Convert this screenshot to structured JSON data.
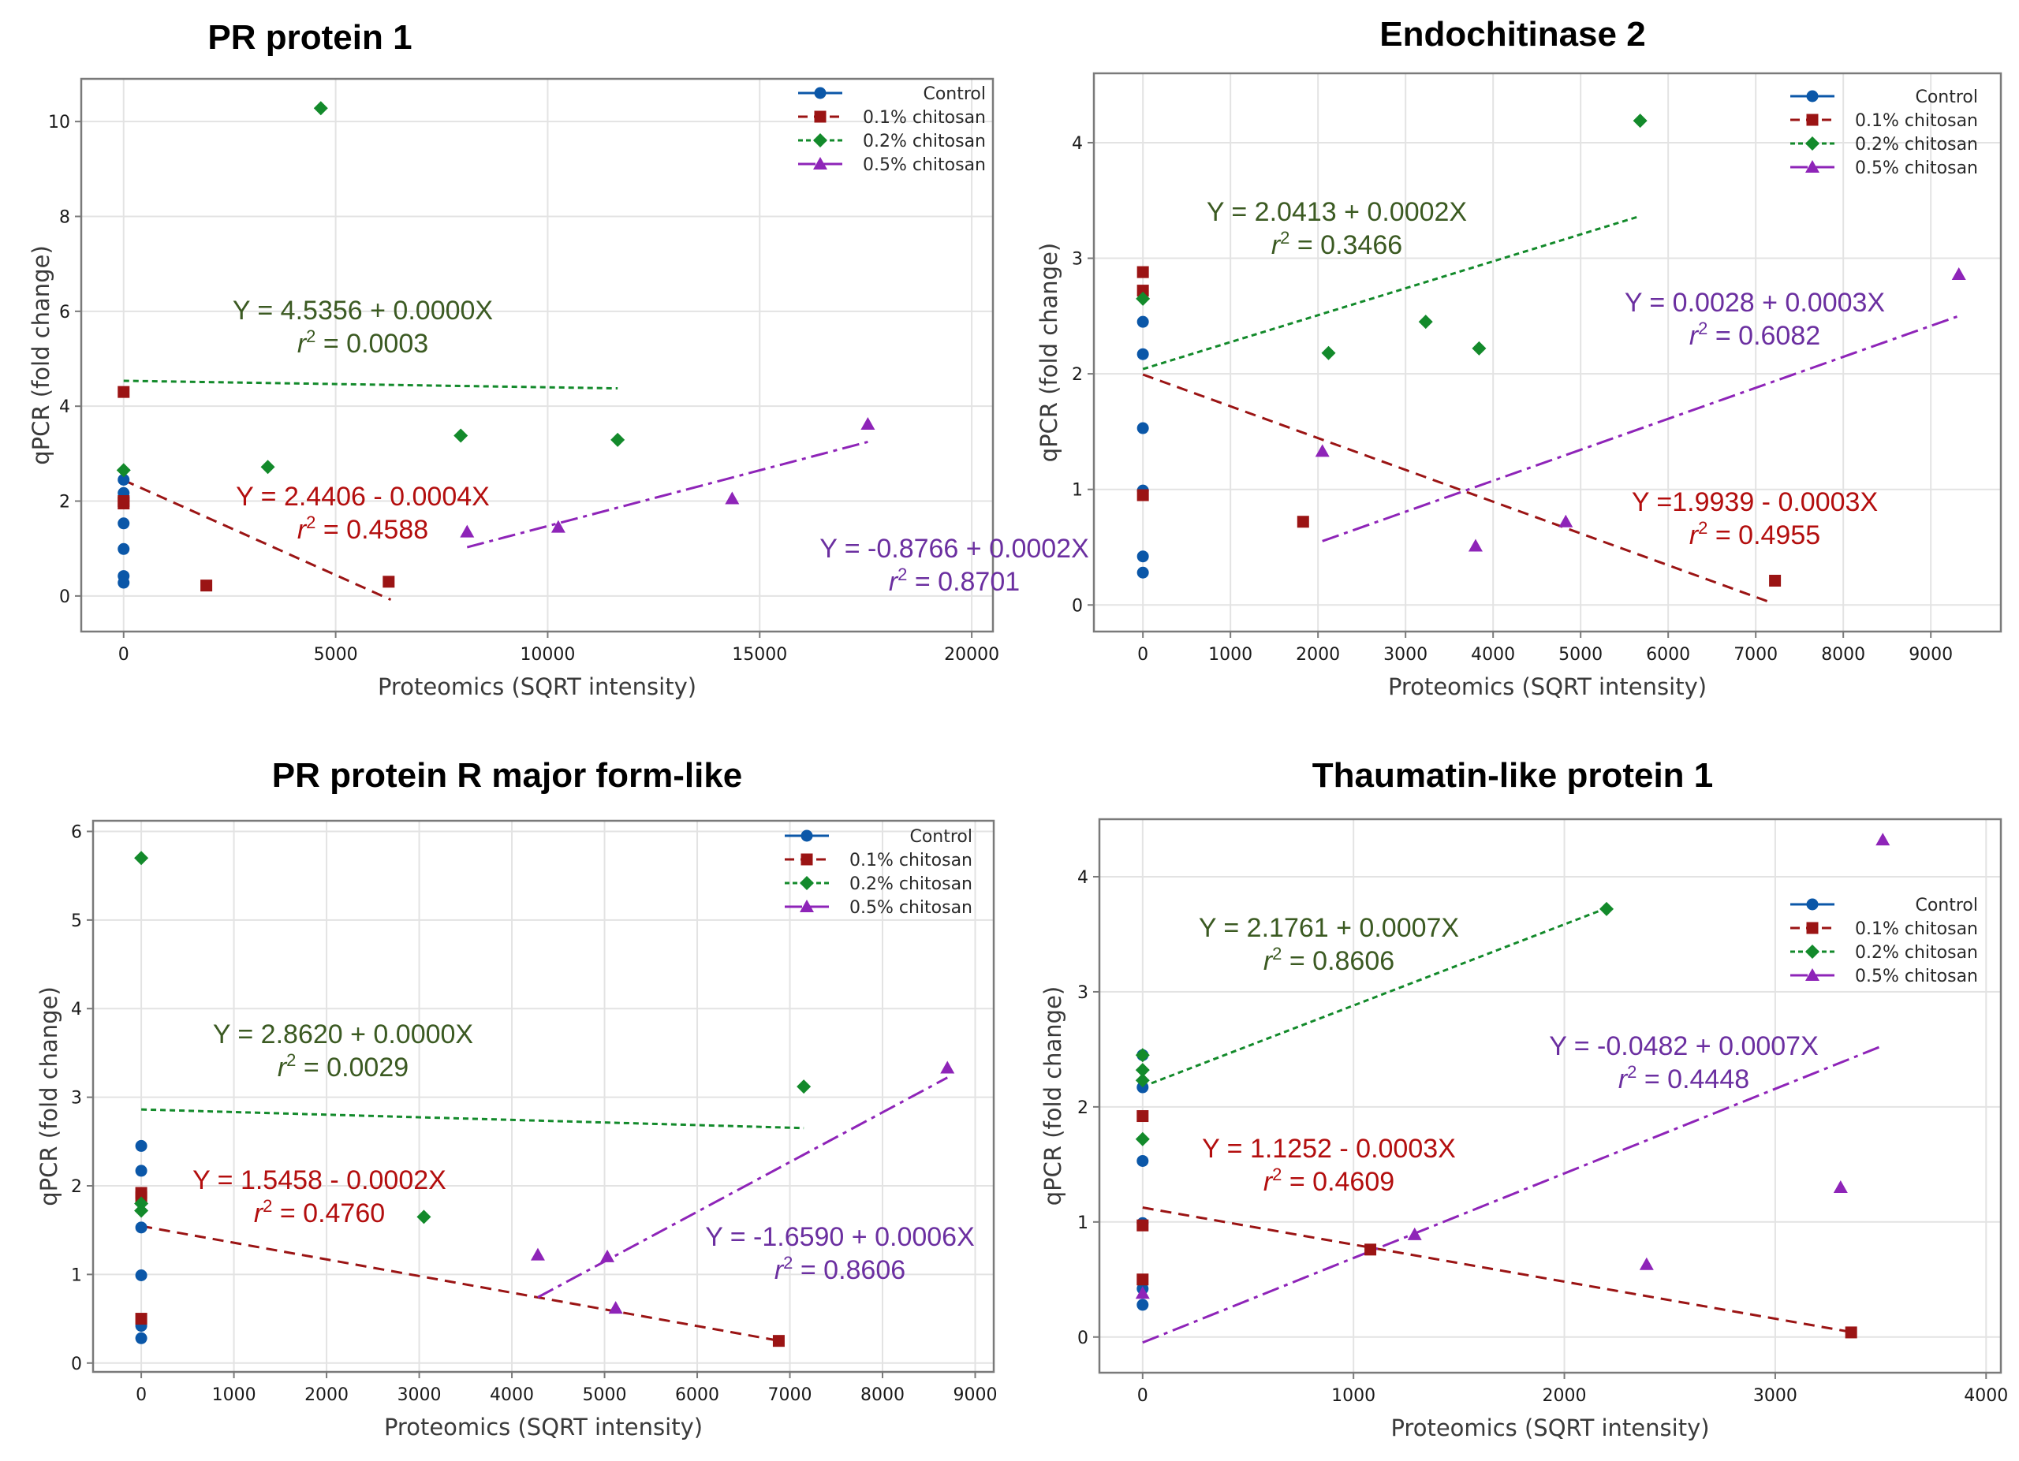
{
  "colors": {
    "control": "#0b57a8",
    "chitosan_01": "#9b1414",
    "chitosan_02": "#138a2b",
    "chitosan_05": "#8e24b8",
    "eq_01": "#b30e0e",
    "eq_02": "#3b5a22",
    "eq_05": "#6b2fa0"
  },
  "legend": {
    "items": [
      {
        "key": "control",
        "label": "Control",
        "marker": "circle"
      },
      {
        "key": "chitosan_01",
        "label": "0.1% chitosan",
        "marker": "square"
      },
      {
        "key": "chitosan_02",
        "label": "0.2% chitosan",
        "marker": "diamond"
      },
      {
        "key": "chitosan_05",
        "label": "0.5% chitosan",
        "marker": "triangle"
      }
    ]
  },
  "chart_data": [
    {
      "type": "scatter",
      "title": "PR protein 1",
      "xlabel": "Proteomics (SQRT intensity)",
      "ylabel": "qPCR (fold change)",
      "xlim": [
        -1000,
        20500
      ],
      "ylim": [
        -0.75,
        10.9
      ],
      "xticks": [
        0,
        5000,
        10000,
        15000,
        20000
      ],
      "yticks": [
        0,
        2,
        4,
        6,
        8,
        10
      ],
      "grid": true,
      "legend_position": "top-right",
      "series": [
        {
          "name": "Control",
          "key": "control",
          "points": [
            [
              0,
              2.45
            ],
            [
              0,
              2.17
            ],
            [
              0,
              2.08
            ],
            [
              0,
              1.53
            ],
            [
              0,
              0.99
            ],
            [
              0,
              0.42
            ],
            [
              0,
              0.28
            ]
          ]
        },
        {
          "name": "0.1% chitosan",
          "key": "chitosan_01",
          "points": [
            [
              0,
              4.3
            ],
            [
              0,
              2.0
            ],
            [
              0,
              1.95
            ],
            [
              1950,
              0.22
            ],
            [
              6250,
              0.3
            ]
          ],
          "fit": {
            "intercept": 2.4406,
            "slope": -0.0004,
            "r2": 0.4588,
            "x_range": [
              0,
              6300
            ]
          },
          "equation": "Y = 2.4406 - 0.0004X",
          "r2_text": "= 0.4588"
        },
        {
          "name": "0.2% chitosan",
          "key": "chitosan_02",
          "points": [
            [
              0,
              2.65
            ],
            [
              3400,
              2.72
            ],
            [
              4650,
              10.28
            ],
            [
              7950,
              3.38
            ],
            [
              11650,
              3.29
            ]
          ],
          "fit": {
            "intercept": 4.5356,
            "slope": -1.37e-05,
            "r2": 0.0003,
            "x_range": [
              0,
              11650
            ]
          },
          "equation": "Y = 4.5356 + 0.0000X",
          "r2_text": "= 0.0003"
        },
        {
          "name": "0.5% chitosan",
          "key": "chitosan_05",
          "points": [
            [
              8100,
              1.35
            ],
            [
              10250,
              1.45
            ],
            [
              14350,
              2.05
            ],
            [
              17550,
              3.62
            ]
          ],
          "fit": {
            "intercept": -0.8766,
            "slope": 0.000235,
            "r2": 0.8701,
            "x_range": [
              8100,
              17550
            ]
          },
          "equation": "Y = -0.8766 + 0.0002X",
          "r2_text": "= 0.8701"
        }
      ]
    },
    {
      "type": "scatter",
      "title": "Endochitinase 2",
      "xlabel": "Proteomics (SQRT intensity)",
      "ylabel": "qPCR (fold change)",
      "xlim": [
        -560,
        9800
      ],
      "ylim": [
        -0.23,
        4.6
      ],
      "xticks": [
        0,
        1000,
        2000,
        3000,
        4000,
        5000,
        6000,
        7000,
        8000,
        9000
      ],
      "yticks": [
        0,
        1,
        2,
        3,
        4
      ],
      "grid": true,
      "legend_position": "top-right",
      "series": [
        {
          "name": "Control",
          "key": "control",
          "points": [
            [
              0,
              2.45
            ],
            [
              0,
              2.17
            ],
            [
              0,
              1.53
            ],
            [
              0,
              0.99
            ],
            [
              0,
              0.42
            ],
            [
              0,
              0.28
            ]
          ]
        },
        {
          "name": "0.1% chitosan",
          "key": "chitosan_01",
          "points": [
            [
              0,
              2.88
            ],
            [
              0,
              2.72
            ],
            [
              0,
              0.95
            ],
            [
              1830,
              0.72
            ],
            [
              7220,
              0.21
            ]
          ],
          "fit": {
            "intercept": 1.9939,
            "slope": -0.000275,
            "r2": 0.4955,
            "x_range": [
              0,
              7200
            ]
          },
          "equation": "Y =1.9939 - 0.0003X",
          "r2_text": "= 0.4955"
        },
        {
          "name": "0.2% chitosan",
          "key": "chitosan_02",
          "points": [
            [
              0,
              2.65
            ],
            [
              2120,
              2.18
            ],
            [
              3230,
              2.45
            ],
            [
              3840,
              2.22
            ],
            [
              5680,
              4.19
            ]
          ],
          "fit": {
            "intercept": 2.0413,
            "slope": 0.000233,
            "r2": 0.3466,
            "x_range": [
              0,
              5680
            ]
          },
          "equation": "Y = 2.0413 + 0.0002X",
          "r2_text": "= 0.3466"
        },
        {
          "name": "0.5% chitosan",
          "key": "chitosan_05",
          "points": [
            [
              2050,
              1.33
            ],
            [
              3800,
              0.51
            ],
            [
              4830,
              0.72
            ],
            [
              9320,
              2.86
            ]
          ],
          "fit": {
            "intercept": 0.0028,
            "slope": 0.000268,
            "r2": 0.6082,
            "x_range": [
              2050,
              9300
            ]
          },
          "equation": "Y = 0.0028 + 0.0003X",
          "r2_text": "= 0.6082"
        }
      ]
    },
    {
      "type": "scatter",
      "title": "PR protein R major form-like",
      "xlabel": "Proteomics (SQRT intensity)",
      "ylabel": "qPCR (fold change)",
      "xlim": [
        -520,
        9200
      ],
      "ylim": [
        -0.1,
        6.12
      ],
      "xticks": [
        0,
        1000,
        2000,
        3000,
        4000,
        5000,
        6000,
        7000,
        8000,
        9000
      ],
      "yticks": [
        0,
        1,
        2,
        3,
        4,
        5,
        6
      ],
      "grid": true,
      "legend_position": "top-right",
      "series": [
        {
          "name": "Control",
          "key": "control",
          "points": [
            [
              0,
              2.45
            ],
            [
              0,
              2.17
            ],
            [
              0,
              1.53
            ],
            [
              0,
              0.99
            ],
            [
              0,
              0.42
            ],
            [
              0,
              0.28
            ]
          ]
        },
        {
          "name": "0.1% chitosan",
          "key": "chitosan_01",
          "points": [
            [
              0,
              1.92
            ],
            [
              0,
              1.87
            ],
            [
              0,
              0.5
            ],
            [
              6880,
              0.25
            ]
          ],
          "fit": {
            "intercept": 1.5458,
            "slope": -0.000188,
            "r2": 0.476,
            "x_range": [
              0,
              6880
            ]
          },
          "equation": "Y = 1.5458 - 0.0002X",
          "r2_text": "= 0.4760"
        },
        {
          "name": "0.2% chitosan",
          "key": "chitosan_02",
          "points": [
            [
              0,
              5.7
            ],
            [
              0,
              1.8
            ],
            [
              0,
              1.72
            ],
            [
              3050,
              1.65
            ],
            [
              7150,
              3.12
            ]
          ],
          "fit": {
            "intercept": 2.862,
            "slope": -2.94e-05,
            "r2": 0.0029,
            "x_range": [
              0,
              7150
            ]
          },
          "equation": "Y = 2.8620 + 0.0000X",
          "r2_text": "= 0.0029"
        },
        {
          "name": "0.5% chitosan",
          "key": "chitosan_05",
          "points": [
            [
              4280,
              1.22
            ],
            [
              5030,
              1.2
            ],
            [
              5120,
              0.62
            ],
            [
              8700,
              3.33
            ]
          ],
          "fit": {
            "intercept": -1.659,
            "slope": 0.000561,
            "r2": 0.8606,
            "x_range": [
              4280,
              8700
            ]
          },
          "equation": "Y = -1.6590 + 0.0006X",
          "r2_text": "= 0.8606"
        }
      ]
    },
    {
      "type": "scatter",
      "title": "Thaumatin-like protein 1",
      "xlabel": "Proteomics (SQRT intensity)",
      "ylabel": "qPCR (fold change)",
      "xlim": [
        -205,
        4070
      ],
      "ylim": [
        -0.31,
        4.5
      ],
      "xticks": [
        0,
        1000,
        2000,
        3000,
        4000
      ],
      "yticks": [
        0,
        1,
        2,
        3,
        4
      ],
      "grid": true,
      "legend_position": "top-right",
      "series": [
        {
          "name": "Control",
          "key": "control",
          "points": [
            [
              0,
              2.45
            ],
            [
              0,
              2.17
            ],
            [
              0,
              1.53
            ],
            [
              0,
              0.99
            ],
            [
              0,
              0.42
            ],
            [
              0,
              0.28
            ]
          ]
        },
        {
          "name": "0.1% chitosan",
          "key": "chitosan_01",
          "points": [
            [
              0,
              1.92
            ],
            [
              0,
              0.97
            ],
            [
              0,
              0.5
            ],
            [
              1080,
              0.76
            ],
            [
              3360,
              0.04
            ]
          ],
          "fit": {
            "intercept": 1.1252,
            "slope": -0.000322,
            "r2": 0.4609,
            "x_range": [
              0,
              3360
            ]
          },
          "equation": "Y = 1.1252 - 0.0003X",
          "r2_text": "= 0.4609"
        },
        {
          "name": "0.2% chitosan",
          "key": "chitosan_02",
          "points": [
            [
              0,
              2.45
            ],
            [
              0,
              2.32
            ],
            [
              0,
              2.23
            ],
            [
              0,
              1.72
            ],
            [
              2200,
              3.72
            ]
          ],
          "fit": {
            "intercept": 2.1761,
            "slope": 0.000705,
            "r2": 0.8606,
            "x_range": [
              0,
              2200
            ]
          },
          "equation": "Y = 2.1761 + 0.0007X",
          "r2_text": "= 0.8606"
        },
        {
          "name": "0.5% chitosan",
          "key": "chitosan_05",
          "points": [
            [
              0,
              0.38
            ],
            [
              1290,
              0.89
            ],
            [
              2390,
              0.63
            ],
            [
              3310,
              1.3
            ],
            [
              3510,
              4.32
            ]
          ],
          "fit": {
            "intercept": -0.0482,
            "slope": 0.000735,
            "r2": 0.4448,
            "x_range": [
              0,
              3510
            ]
          },
          "equation": "Y = -0.0482 + 0.0007X",
          "r2_text": "= 0.4448"
        }
      ]
    }
  ]
}
